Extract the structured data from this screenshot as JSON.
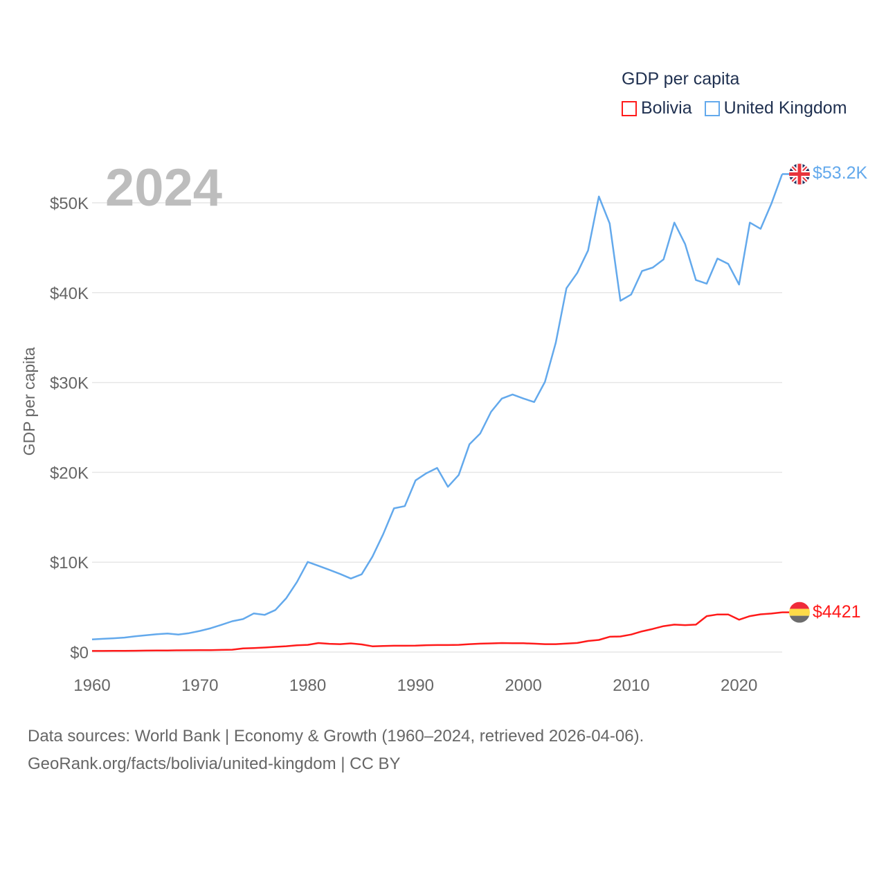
{
  "chart_data": {
    "type": "line",
    "title": "",
    "year_label": "2024",
    "legend_title": "GDP per capita",
    "legend_placement": "top-right",
    "ylabel": "GDP per capita",
    "xlabel": "",
    "xlim": [
      1960,
      2024
    ],
    "ylim": [
      0,
      55000
    ],
    "grid": true,
    "x_ticks": [
      1960,
      1970,
      1980,
      1990,
      2000,
      2010,
      2020
    ],
    "x_tick_labels": [
      "1960",
      "1970",
      "1980",
      "1990",
      "2000",
      "2010",
      "2020"
    ],
    "y_ticks": [
      0,
      10000,
      20000,
      30000,
      40000,
      50000
    ],
    "y_tick_labels": [
      "$0",
      "$10K",
      "$20K",
      "$30K",
      "$40K",
      "$50K"
    ],
    "x": [
      1960,
      1961,
      1962,
      1963,
      1964,
      1965,
      1966,
      1967,
      1968,
      1969,
      1970,
      1971,
      1972,
      1973,
      1974,
      1975,
      1976,
      1977,
      1978,
      1979,
      1980,
      1981,
      1982,
      1983,
      1984,
      1985,
      1986,
      1987,
      1988,
      1989,
      1990,
      1991,
      1992,
      1993,
      1994,
      1995,
      1996,
      1997,
      1998,
      1999,
      2000,
      2001,
      2002,
      2003,
      2004,
      2005,
      2006,
      2007,
      2008,
      2009,
      2010,
      2011,
      2012,
      2013,
      2014,
      2015,
      2016,
      2017,
      2018,
      2019,
      2020,
      2021,
      2022,
      2023,
      2024
    ],
    "series": [
      {
        "name": "Bolivia",
        "color": "#ff1a1a",
        "end_label": "$4421",
        "flag": "bolivia-flag",
        "values": [
          120,
          125,
          130,
          140,
          150,
          160,
          170,
          180,
          190,
          200,
          210,
          215,
          240,
          260,
          400,
          450,
          500,
          580,
          650,
          750,
          800,
          1000,
          920,
          880,
          960,
          850,
          640,
          680,
          700,
          700,
          710,
          760,
          780,
          780,
          800,
          880,
          930,
          960,
          1000,
          980,
          980,
          930,
          880,
          880,
          950,
          1010,
          1230,
          1350,
          1700,
          1730,
          1950,
          2300,
          2570,
          2880,
          3050,
          3000,
          3050,
          4000,
          4180,
          4180,
          3600,
          4000,
          4200,
          4280,
          4421
        ]
      },
      {
        "name": "United Kingdom",
        "color": "#63a9ec",
        "end_label": "$53.2K",
        "flag": "uk-flag",
        "values": [
          1400,
          1470,
          1530,
          1610,
          1750,
          1870,
          1980,
          2060,
          1950,
          2100,
          2350,
          2650,
          3030,
          3430,
          3670,
          4300,
          4140,
          4680,
          5980,
          7800,
          10030,
          9600,
          9150,
          8690,
          8180,
          8650,
          10610,
          13120,
          15990,
          16240,
          19100,
          19900,
          20490,
          18390,
          19710,
          23120,
          24330,
          26730,
          28210,
          28670,
          28220,
          27830,
          30080,
          34420,
          40500,
          42200,
          44700,
          50700,
          47700,
          39100,
          39800,
          42400,
          42800,
          43700,
          47800,
          45400,
          41400,
          41000,
          43800,
          43200,
          40900,
          47800,
          47100,
          49900,
          53200
        ]
      }
    ]
  },
  "footer": {
    "line1": "Data sources: World Bank | Economy & Growth (1960–2024, retrieved 2026-04-06).",
    "line2": "GeoRank.org/facts/bolivia/united-kingdom | CC BY"
  }
}
